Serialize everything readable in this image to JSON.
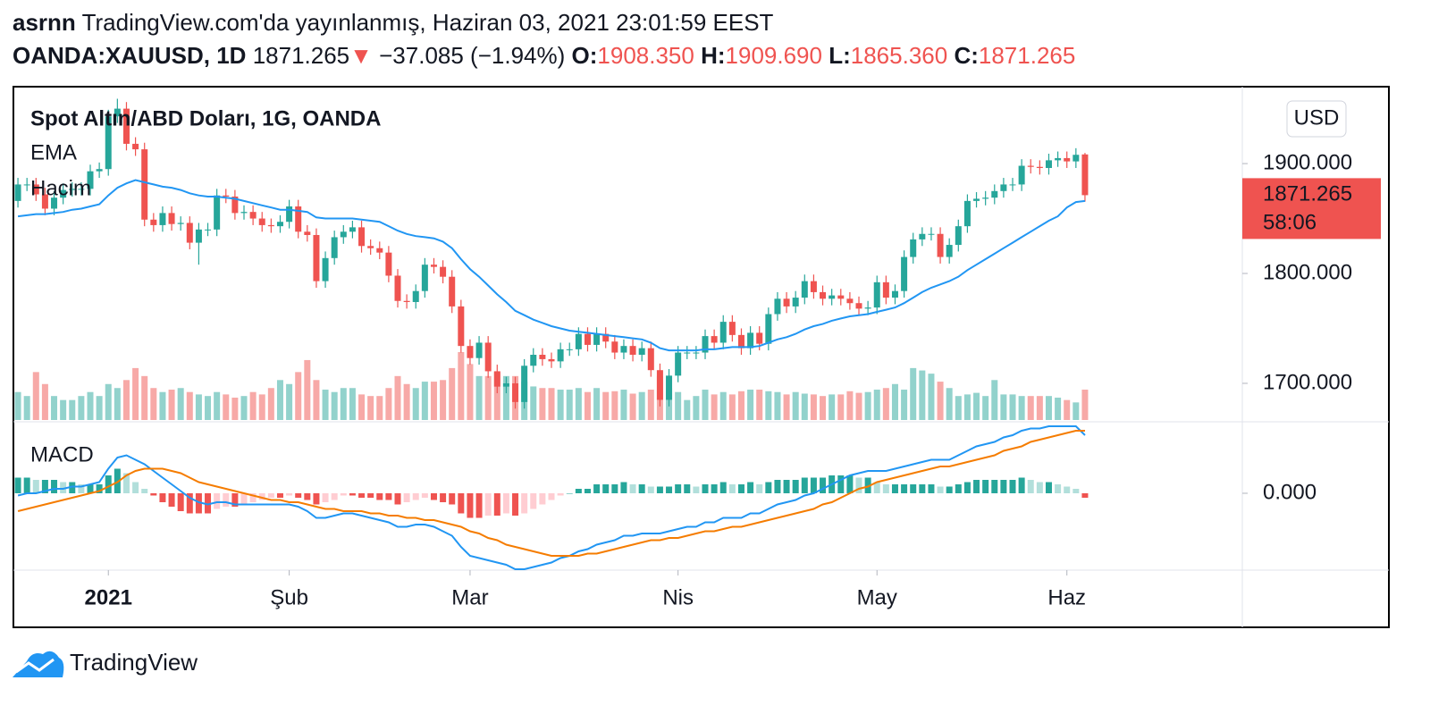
{
  "header": {
    "user": "asrnn",
    "published": "TradingView.com'da yayınlanmış, Haziran 03, 2021 23:01:59 EEST",
    "symbol": "OANDA:XAUUSD, 1D",
    "last": "1871.265",
    "arrow": "▼",
    "change": "−37.085 (−1.94%)",
    "ohlc": [
      {
        "label": "O:",
        "value": "1908.350"
      },
      {
        "label": "H:",
        "value": "1909.690"
      },
      {
        "label": "L:",
        "value": "1865.360"
      },
      {
        "label": "C:",
        "value": "1871.265"
      }
    ]
  },
  "footer": {
    "brand": "TradingView"
  },
  "chart_data": {
    "type": "candlestick",
    "title": "Spot Altın/ABD Doları, 1G, OANDA",
    "currency": "USD",
    "xlim": [
      -0.5,
      135.4
    ],
    "xticks": [
      {
        "value": 10,
        "label": "2021"
      },
      {
        "value": 30,
        "label": "Şub"
      },
      {
        "value": 50,
        "label": "Mar"
      },
      {
        "value": 73,
        "label": "Nis"
      },
      {
        "value": 95,
        "label": "May"
      },
      {
        "value": 116,
        "label": "Haz"
      }
    ],
    "ylim": [
      1665,
      1970
    ],
    "yticks": [
      {
        "value": 1700,
        "label": "1700.000"
      },
      {
        "value": 1800,
        "label": "1800.000"
      },
      {
        "value": 1900,
        "label": "1900.000"
      }
    ],
    "up_color": "#26a69a",
    "down_color": "#ef5350",
    "open": [
      1866,
      1881,
      1881,
      1872,
      1859,
      1869,
      1876,
      1877,
      1877,
      1893,
      1895,
      1943,
      1950,
      1918,
      1913,
      1849,
      1844,
      1855,
      1845,
      1846,
      1828,
      1840,
      1840,
      1871,
      1870,
      1855,
      1856,
      1850,
      1844,
      1843,
      1847,
      1861,
      1838,
      1835,
      1793,
      1814,
      1833,
      1838,
      1842,
      1825,
      1823,
      1819,
      1798,
      1775,
      1774,
      1784,
      1808,
      1806,
      1797,
      1770,
      1734,
      1723,
      1737,
      1711,
      1697,
      1700,
      1683,
      1716,
      1726,
      1722,
      1720,
      1731,
      1731,
      1745,
      1735,
      1745,
      1738,
      1728,
      1734,
      1726,
      1732,
      1712,
      1685,
      1707,
      1728,
      1728,
      1728,
      1743,
      1737,
      1756,
      1744,
      1732,
      1746,
      1736,
      1763,
      1777,
      1770,
      1778,
      1793,
      1783,
      1777,
      1780,
      1777,
      1773,
      1768,
      1769,
      1792,
      1778,
      1784,
      1815,
      1831,
      1836,
      1836,
      1815,
      1826,
      1843,
      1866,
      1868,
      1869,
      1875,
      1881,
      1881,
      1898,
      1897,
      1896,
      1903,
      1905,
      1902,
      1908.35
    ],
    "high": [
      1887,
      1887,
      1887,
      1878,
      1875,
      1882,
      1883,
      1883,
      1899,
      1901,
      1949,
      1959,
      1956,
      1924,
      1919,
      1855,
      1861,
      1861,
      1852,
      1852,
      1846,
      1846,
      1877,
      1877,
      1876,
      1862,
      1862,
      1856,
      1850,
      1853,
      1867,
      1867,
      1844,
      1841,
      1820,
      1839,
      1844,
      1848,
      1848,
      1831,
      1829,
      1825,
      1804,
      1781,
      1790,
      1814,
      1814,
      1812,
      1803,
      1776,
      1740,
      1743,
      1743,
      1717,
      1706,
      1706,
      1722,
      1732,
      1732,
      1728,
      1737,
      1737,
      1751,
      1751,
      1751,
      1751,
      1744,
      1740,
      1740,
      1738,
      1738,
      1718,
      1713,
      1734,
      1734,
      1734,
      1749,
      1749,
      1762,
      1762,
      1750,
      1752,
      1752,
      1769,
      1783,
      1783,
      1784,
      1799,
      1799,
      1789,
      1786,
      1786,
      1783,
      1779,
      1775,
      1798,
      1798,
      1790,
      1821,
      1837,
      1842,
      1842,
      1842,
      1832,
      1849,
      1872,
      1874,
      1875,
      1881,
      1887,
      1887,
      1904,
      1904,
      1903,
      1909,
      1911,
      1911,
      1914,
      1909.69
    ],
    "low": [
      1860,
      1875,
      1866,
      1853,
      1853,
      1863,
      1870,
      1871,
      1871,
      1887,
      1889,
      1937,
      1912,
      1907,
      1843,
      1838,
      1838,
      1839,
      1839,
      1822,
      1808,
      1834,
      1834,
      1864,
      1849,
      1849,
      1844,
      1838,
      1837,
      1837,
      1841,
      1832,
      1829,
      1787,
      1787,
      1808,
      1827,
      1832,
      1819,
      1817,
      1813,
      1792,
      1769,
      1768,
      1768,
      1778,
      1800,
      1791,
      1764,
      1728,
      1717,
      1717,
      1705,
      1691,
      1691,
      1677,
      1677,
      1710,
      1716,
      1714,
      1714,
      1725,
      1725,
      1729,
      1729,
      1732,
      1722,
      1722,
      1720,
      1720,
      1706,
      1679,
      1679,
      1701,
      1722,
      1722,
      1722,
      1731,
      1731,
      1738,
      1726,
      1726,
      1730,
      1730,
      1757,
      1764,
      1764,
      1772,
      1777,
      1771,
      1771,
      1771,
      1767,
      1762,
      1762,
      1763,
      1772,
      1772,
      1778,
      1809,
      1825,
      1830,
      1809,
      1809,
      1820,
      1837,
      1860,
      1862,
      1863,
      1869,
      1875,
      1875,
      1891,
      1890,
      1890,
      1897,
      1896,
      1896,
      1865.36
    ],
    "close": [
      1881,
      1881,
      1872,
      1859,
      1869,
      1876,
      1877,
      1877,
      1893,
      1895,
      1943,
      1950,
      1918,
      1913,
      1849,
      1844,
      1855,
      1845,
      1846,
      1828,
      1840,
      1840,
      1871,
      1870,
      1855,
      1856,
      1850,
      1844,
      1843,
      1847,
      1861,
      1838,
      1835,
      1793,
      1814,
      1833,
      1838,
      1842,
      1825,
      1823,
      1819,
      1798,
      1775,
      1774,
      1784,
      1808,
      1806,
      1797,
      1770,
      1734,
      1723,
      1737,
      1711,
      1697,
      1700,
      1683,
      1716,
      1726,
      1722,
      1720,
      1731,
      1731,
      1745,
      1735,
      1745,
      1738,
      1728,
      1734,
      1726,
      1732,
      1712,
      1685,
      1707,
      1728,
      1728,
      1728,
      1743,
      1737,
      1756,
      1744,
      1732,
      1746,
      1736,
      1763,
      1777,
      1770,
      1778,
      1793,
      1783,
      1777,
      1780,
      1777,
      1773,
      1768,
      1769,
      1792,
      1778,
      1784,
      1815,
      1831,
      1836,
      1836,
      1815,
      1826,
      1843,
      1866,
      1868,
      1869,
      1875,
      1881,
      1881,
      1898,
      1897,
      1896,
      1903,
      1905,
      1902,
      1908,
      1871.265
    ],
    "ema": {
      "name": "EMA",
      "color": "#2196f3",
      "values": [
        1852,
        1853,
        1854,
        1854,
        1855,
        1856,
        1858,
        1859,
        1861,
        1863,
        1871,
        1878,
        1882,
        1885,
        1883,
        1881,
        1879,
        1878,
        1876,
        1873,
        1871,
        1870,
        1870,
        1869,
        1868,
        1866,
        1864,
        1862,
        1860,
        1858,
        1858,
        1857,
        1856,
        1851,
        1850,
        1850,
        1850,
        1850,
        1849,
        1848,
        1847,
        1843,
        1839,
        1836,
        1834,
        1833,
        1832,
        1829,
        1823,
        1813,
        1804,
        1797,
        1789,
        1781,
        1774,
        1766,
        1762,
        1758,
        1755,
        1752,
        1750,
        1748,
        1747,
        1746,
        1745,
        1744,
        1743,
        1742,
        1741,
        1740,
        1737,
        1732,
        1730,
        1730,
        1730,
        1730,
        1731,
        1731,
        1732,
        1733,
        1733,
        1733,
        1734,
        1737,
        1740,
        1742,
        1745,
        1749,
        1752,
        1754,
        1757,
        1759,
        1761,
        1762,
        1763,
        1765,
        1767,
        1769,
        1773,
        1778,
        1783,
        1787,
        1790,
        1793,
        1797,
        1803,
        1808,
        1813,
        1818,
        1823,
        1828,
        1833,
        1838,
        1843,
        1848,
        1852,
        1860,
        1865,
        1866
      ]
    },
    "volume": {
      "name": "Hacim",
      "values": [
        35,
        30,
        60,
        45,
        30,
        25,
        25,
        30,
        35,
        30,
        45,
        40,
        50,
        65,
        55,
        40,
        35,
        38,
        40,
        35,
        32,
        30,
        35,
        32,
        28,
        30,
        35,
        32,
        40,
        50,
        45,
        60,
        75,
        50,
        38,
        35,
        40,
        40,
        32,
        30,
        30,
        40,
        55,
        45,
        40,
        48,
        48,
        50,
        65,
        85,
        70,
        55,
        55,
        60,
        55,
        55,
        48,
        42,
        40,
        40,
        38,
        38,
        40,
        35,
        40,
        35,
        36,
        38,
        33,
        35,
        38,
        55,
        40,
        35,
        25,
        30,
        38,
        32,
        35,
        32,
        36,
        38,
        38,
        36,
        35,
        32,
        35,
        33,
        32,
        30,
        32,
        32,
        36,
        34,
        35,
        38,
        40,
        45,
        38,
        65,
        62,
        58,
        48,
        40,
        30,
        32,
        34,
        30,
        50,
        32,
        32,
        30,
        30,
        30,
        30,
        28,
        25,
        22,
        38
      ]
    },
    "price_tag": {
      "label": "1871.265",
      "countdown": "58:06"
    },
    "macd": {
      "name": "MACD",
      "ylim": [
        -34.4,
        32
      ],
      "yticks": [
        {
          "value": 0,
          "label": "0.000"
        }
      ],
      "series": [
        {
          "color": "#2196f3",
          "values": [
            -1,
            0,
            0,
            1,
            2,
            2,
            3,
            3,
            4,
            5,
            11,
            16,
            17,
            15,
            13,
            10,
            7,
            4,
            1,
            -2,
            -4,
            -5,
            -4,
            -4,
            -5,
            -5,
            -5,
            -5,
            -5,
            -5,
            -5,
            -6,
            -8,
            -11,
            -11,
            -10,
            -9,
            -9,
            -10,
            -11,
            -12,
            -13,
            -15,
            -15,
            -14,
            -14,
            -15,
            -17,
            -19,
            -24,
            -28,
            -29,
            -30,
            -31,
            -32,
            -34,
            -34,
            -33,
            -32,
            -31,
            -29,
            -28,
            -26,
            -25,
            -23,
            -22,
            -21,
            -19,
            -19,
            -18,
            -18,
            -18,
            -17,
            -16,
            -15,
            -15,
            -13,
            -13,
            -11,
            -11,
            -11,
            -9,
            -9,
            -7,
            -5,
            -4,
            -3,
            -1,
            0,
            2,
            4,
            6,
            8,
            9,
            10,
            10,
            10,
            11,
            12,
            13,
            14,
            15,
            15,
            15,
            17,
            19,
            21,
            22,
            23,
            25,
            26,
            28,
            29,
            29,
            30,
            30,
            30,
            30,
            26
          ]
        },
        {
          "color": "#f57c00",
          "values": [
            -8,
            -7,
            -6,
            -5,
            -4,
            -3,
            -2,
            -1,
            0,
            1,
            3,
            5,
            8,
            10,
            11,
            11,
            11,
            10,
            9,
            7,
            5,
            4,
            3,
            2,
            1,
            0,
            -1,
            -2,
            -3,
            -3,
            -4,
            -4,
            -5,
            -6,
            -7,
            -7,
            -8,
            -8,
            -8,
            -9,
            -9,
            -10,
            -10,
            -11,
            -11,
            -12,
            -12,
            -13,
            -14,
            -15,
            -17,
            -18,
            -20,
            -21,
            -23,
            -24,
            -25,
            -26,
            -27,
            -28,
            -28,
            -28,
            -28,
            -27,
            -27,
            -26,
            -25,
            -24,
            -23,
            -22,
            -21,
            -21,
            -20,
            -20,
            -19,
            -18,
            -17,
            -17,
            -16,
            -15,
            -15,
            -14,
            -13,
            -12,
            -11,
            -10,
            -9,
            -8,
            -7,
            -5,
            -4,
            -2,
            0,
            2,
            3,
            5,
            6,
            7,
            8,
            9,
            10,
            11,
            12,
            12,
            13,
            14,
            15,
            16,
            17,
            19,
            20,
            21,
            23,
            24,
            25,
            26,
            27,
            28,
            28
          ]
        }
      ],
      "histogram": [
        7,
        7,
        6,
        6,
        6,
        5,
        5,
        4,
        4,
        4,
        8,
        11,
        9,
        5,
        2,
        -1,
        -4,
        -6,
        -8,
        -9,
        -9,
        -9,
        -7,
        -6,
        -6,
        -5,
        -4,
        -3,
        -2,
        -2,
        -1,
        -2,
        -3,
        -5,
        -4,
        -3,
        -1,
        -1,
        -2,
        -2,
        -3,
        -3,
        -5,
        -4,
        -3,
        -2,
        -3,
        -4,
        -5,
        -9,
        -11,
        -11,
        -10,
        -10,
        -9,
        -10,
        -9,
        -7,
        -5,
        -3,
        -1,
        0,
        2,
        2,
        4,
        4,
        4,
        5,
        4,
        4,
        3,
        3,
        3,
        4,
        4,
        3,
        4,
        4,
        5,
        4,
        4,
        5,
        4,
        5,
        6,
        6,
        6,
        7,
        7,
        7,
        8,
        8,
        8,
        7,
        7,
        5,
        4,
        4,
        4,
        4,
        4,
        4,
        3,
        3,
        4,
        5,
        6,
        6,
        6,
        6,
        6,
        7,
        6,
        5,
        5,
        4,
        3,
        2,
        -2
      ],
      "histogram_colors": [
        "#26a69a",
        "#b2dfdb",
        "#ffcdd2",
        "#ef5350"
      ]
    }
  }
}
